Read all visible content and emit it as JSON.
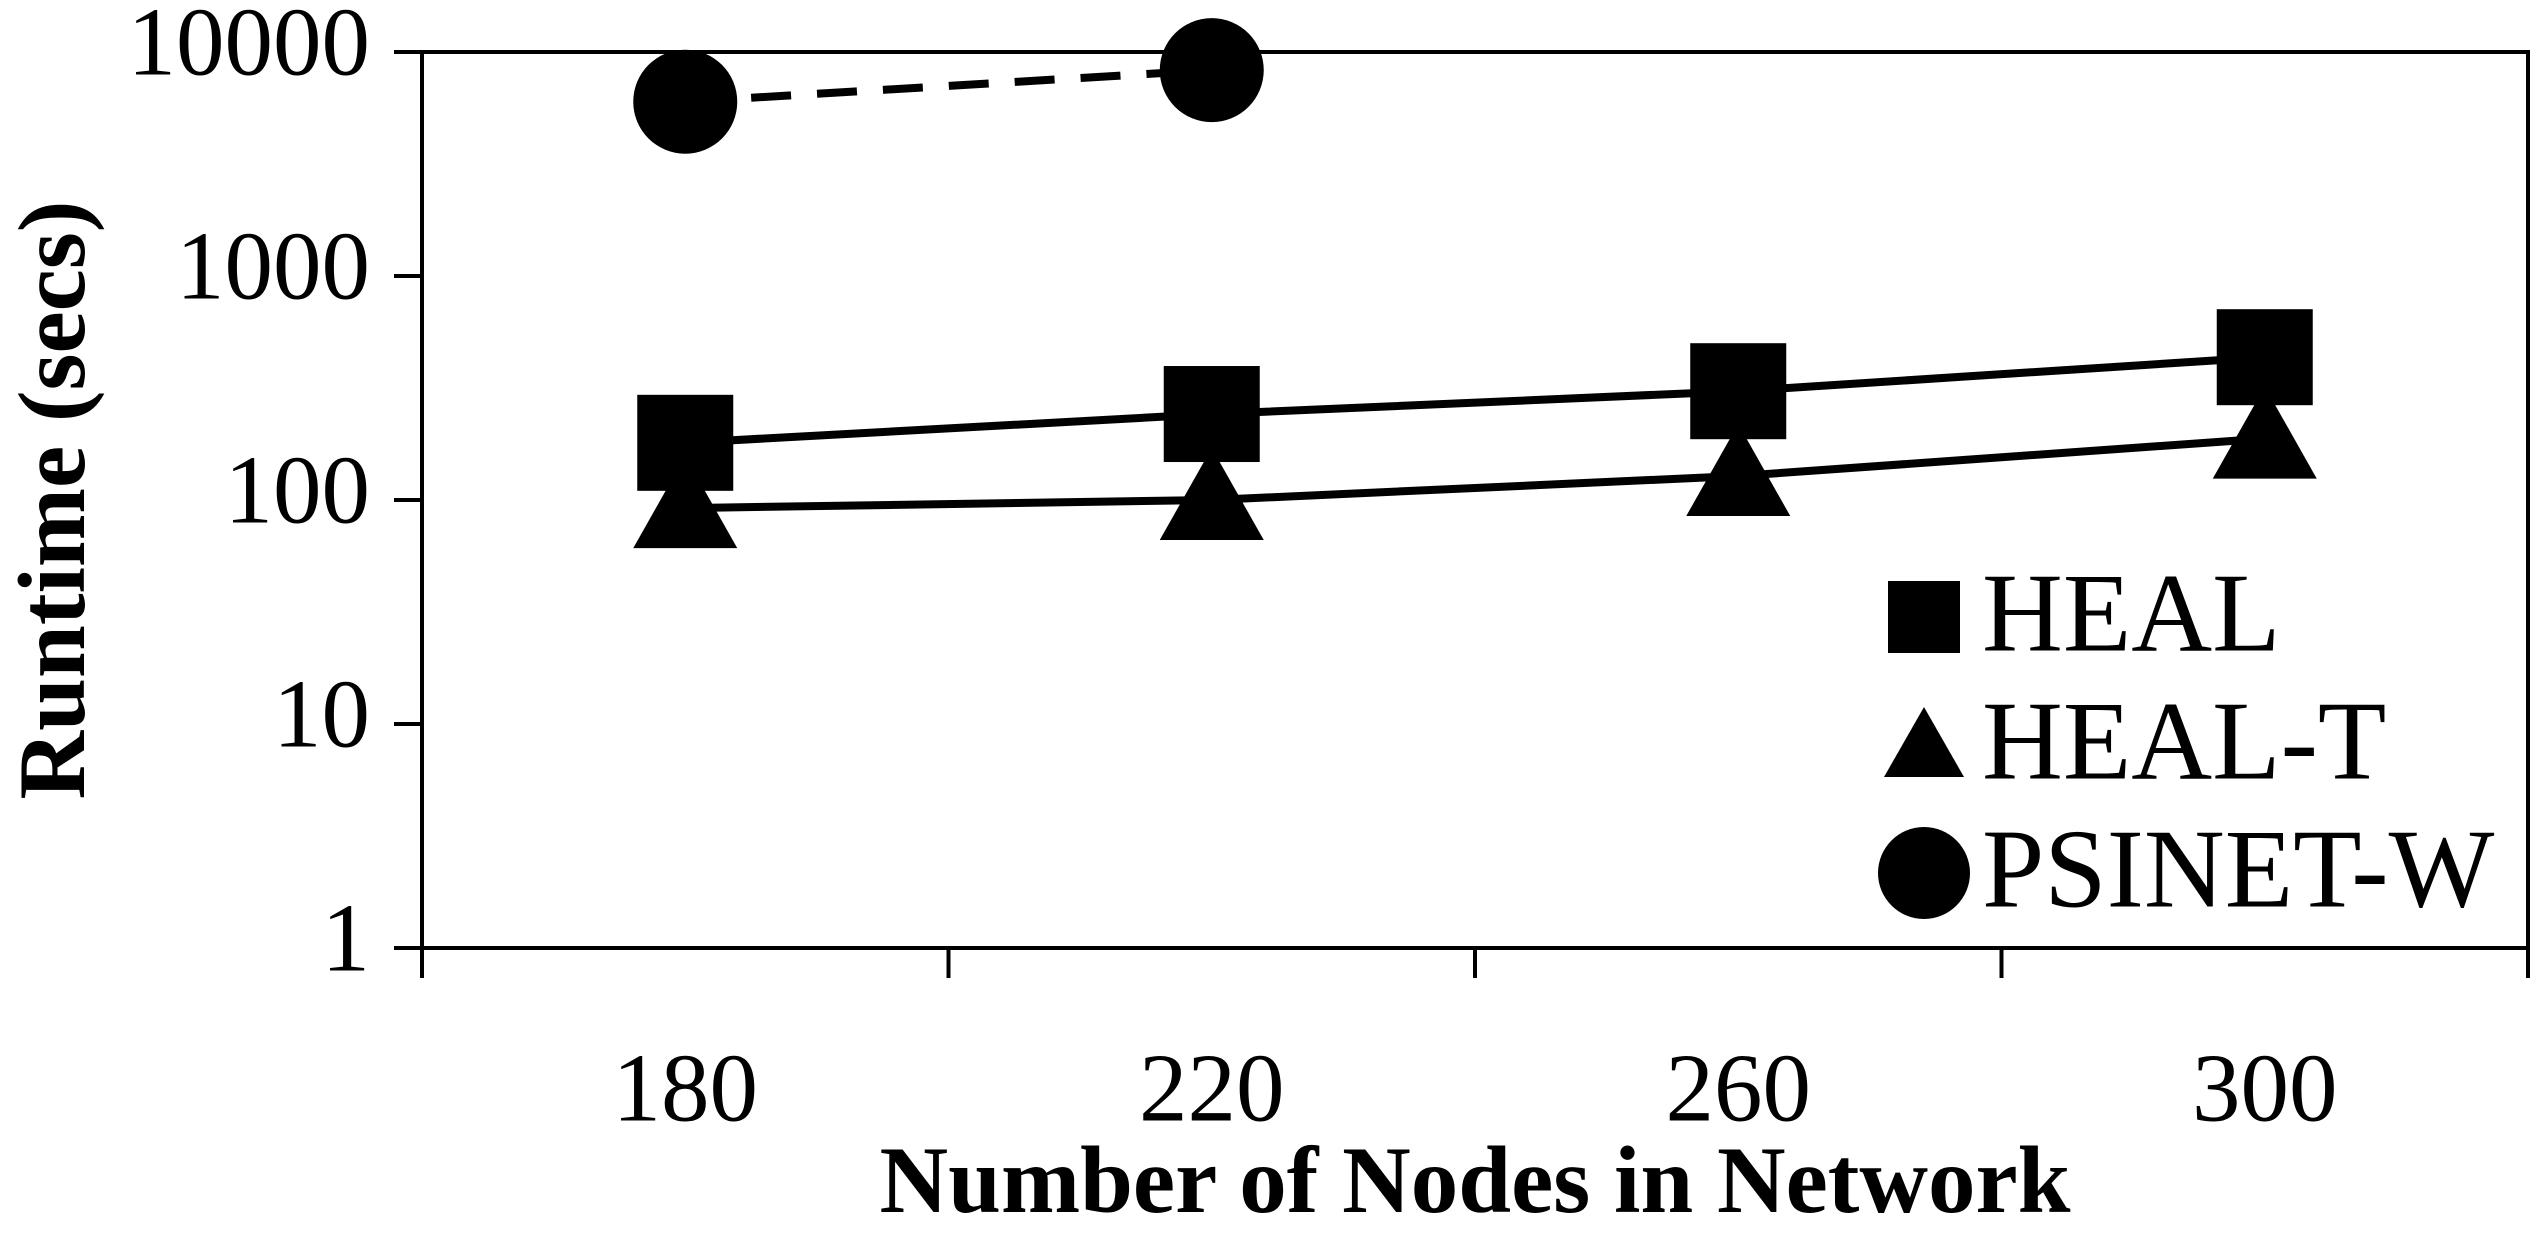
{
  "chart_data": {
    "type": "line",
    "x_label": "Number of Nodes in Network",
    "y_label": "Runtime (secs)",
    "categories": [
      "180",
      "220",
      "260",
      "300"
    ],
    "series": [
      {
        "name": "HEAL",
        "color": "#000000",
        "marker": "square",
        "linestyle": "solid",
        "values": [
          180,
          242,
          306,
          434
        ]
      },
      {
        "name": "HEAL-T",
        "color": "#000000",
        "marker": "triangle",
        "linestyle": "solid",
        "values": [
          92,
          100,
          128,
          188
        ]
      },
      {
        "name": "PSINET-W",
        "color": "#000000",
        "marker": "circle",
        "linestyle": "dashed",
        "values": [
          6000,
          8300,
          null,
          null
        ]
      }
    ],
    "ylim": [
      1,
      10000
    ],
    "yticks": [
      1,
      10,
      100,
      1000,
      10000
    ],
    "yscale": "log",
    "legend": "lower right"
  }
}
